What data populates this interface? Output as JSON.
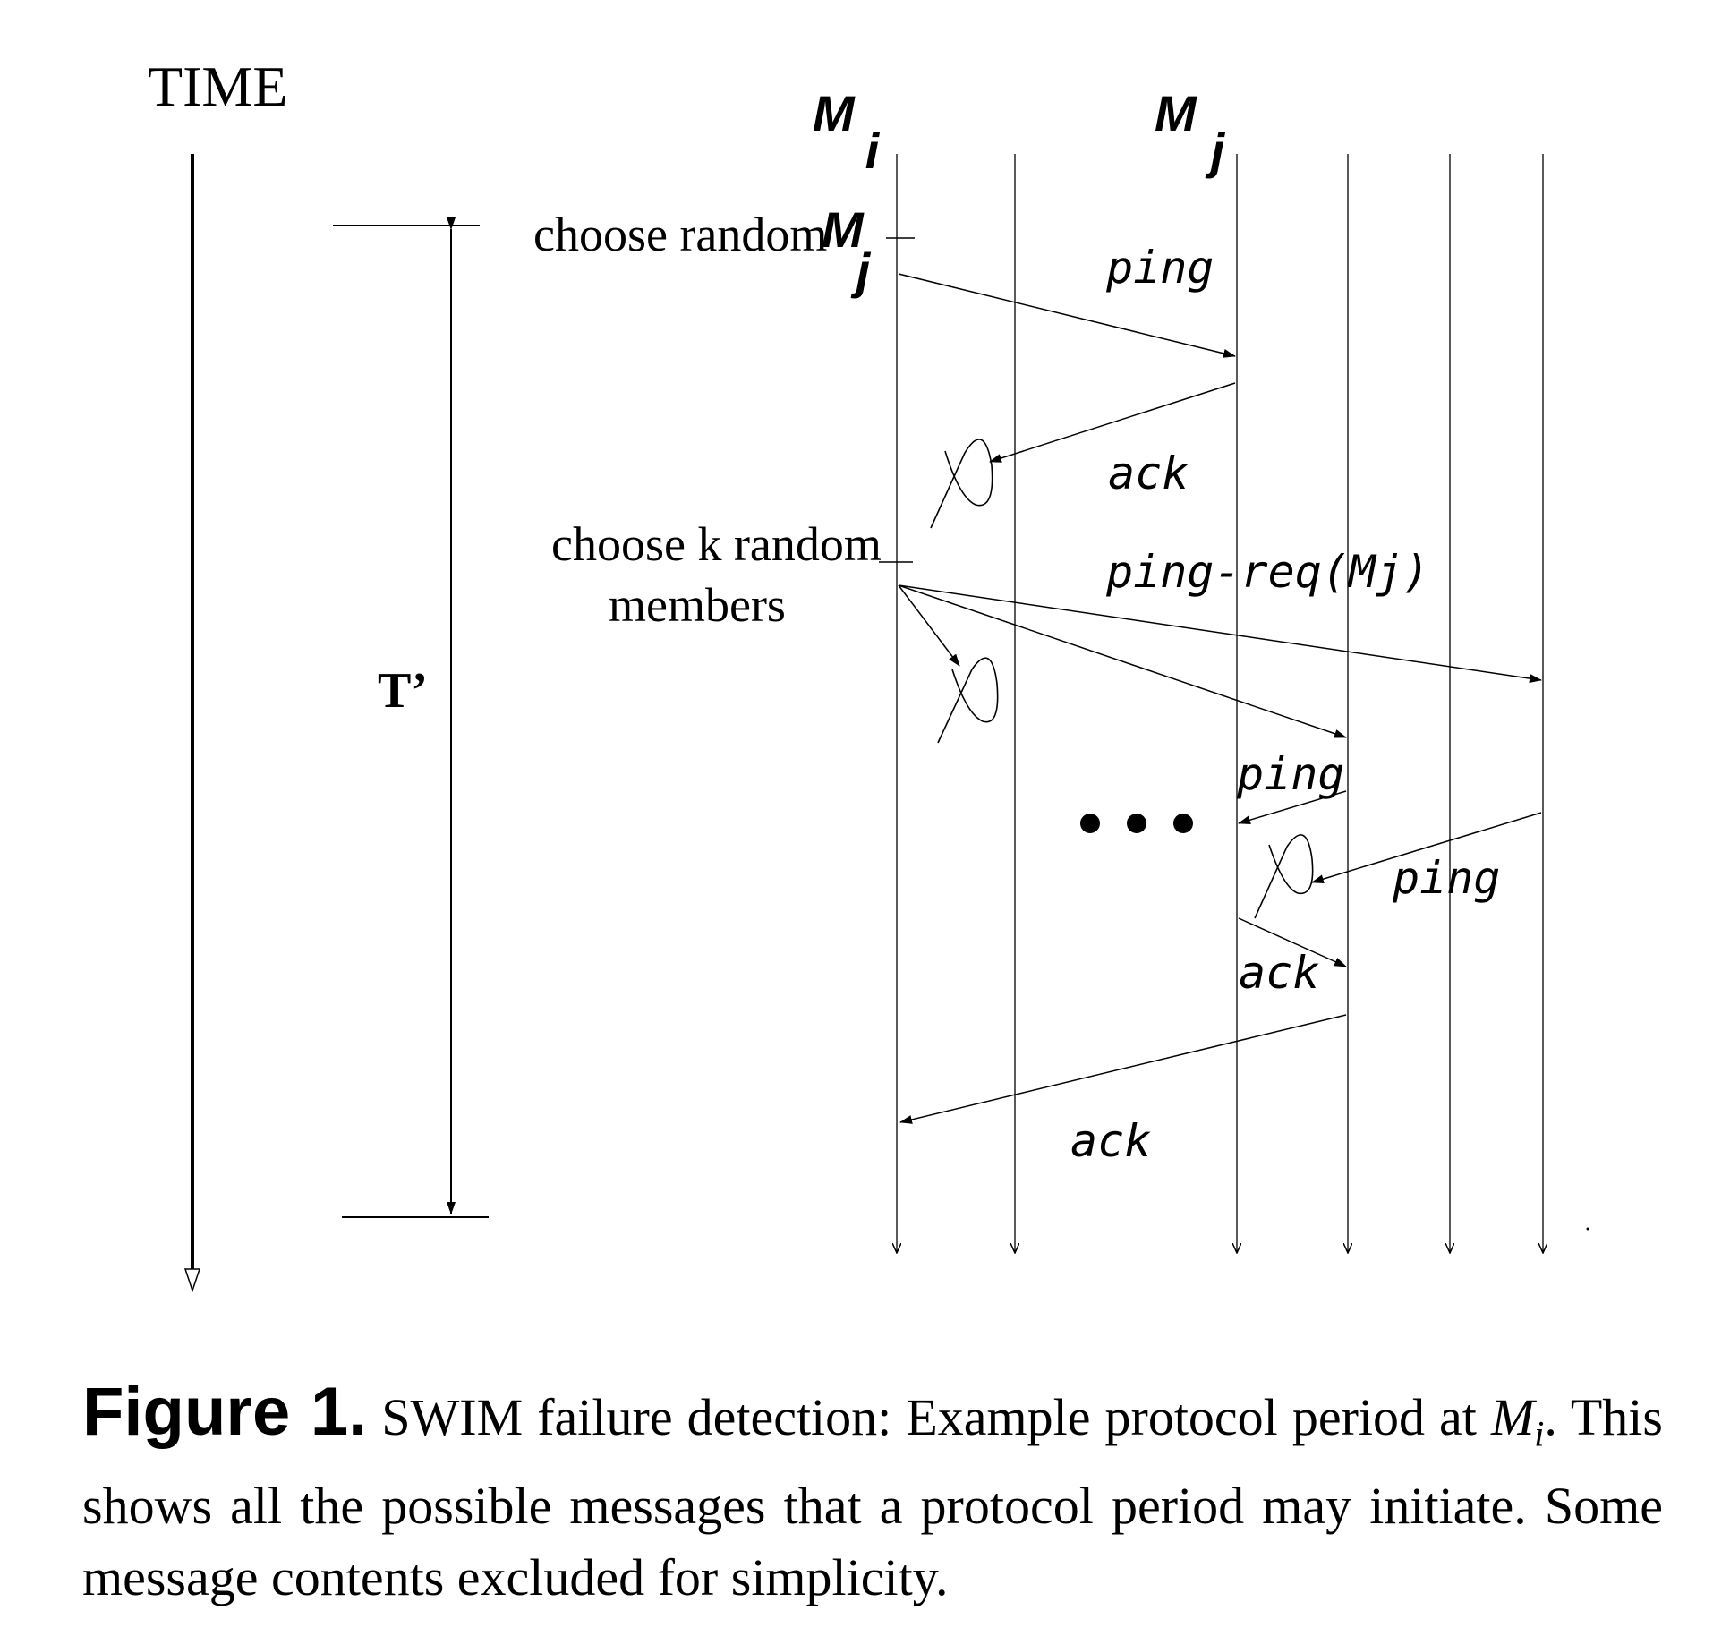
{
  "time_label": "TIME",
  "period_label": "T’",
  "members": {
    "mi": {
      "base": "M",
      "sub": "i"
    },
    "mj": {
      "base": "M",
      "sub": "j"
    }
  },
  "steps": {
    "choose_random": "choose random",
    "choose_random_member": {
      "base": "M",
      "sub": "j"
    },
    "choose_k_line1": "choose k random",
    "choose_k_line2": "members"
  },
  "messages": {
    "ping": "ping",
    "ack": "ack",
    "ping_req": "ping-req(Mj)",
    "ping_relay_1": "ping",
    "ping_relay_2": "ping",
    "ack_relay": "ack",
    "ack_final": "ack"
  },
  "caption": {
    "label": "Figure 1.",
    "text_1": " SWIM failure detection: Example protocol period at ",
    "math_base": "M",
    "math_sub": "i",
    "text_2": ". This shows all the possible messages that a protocol period may initiate. Some message contents excluded for simplicity."
  }
}
